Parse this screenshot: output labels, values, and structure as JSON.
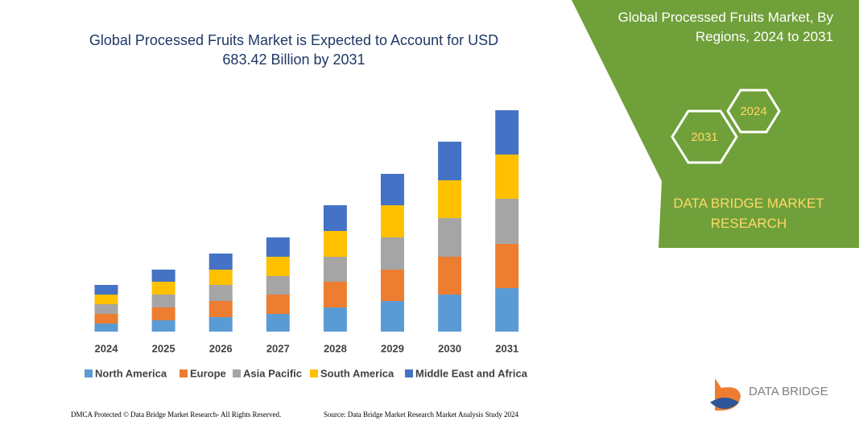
{
  "chart_data": {
    "type": "bar",
    "stacked": true,
    "title": "Global Processed Fruits Market is Expected to Account for USD 683.42 Billion by 2031",
    "categories": [
      "2024",
      "2025",
      "2026",
      "2027",
      "2028",
      "2029",
      "2030",
      "2031"
    ],
    "series": [
      {
        "name": "North America",
        "color": "#5b9bd5",
        "values": [
          10,
          14,
          18,
          22,
          30,
          38,
          46,
          54
        ]
      },
      {
        "name": "Europe",
        "color": "#ed7d31",
        "values": [
          12,
          16,
          20,
          24,
          32,
          39,
          47,
          55
        ]
      },
      {
        "name": "Asia Pacific",
        "color": "#a5a5a5",
        "values": [
          12,
          16,
          20,
          23,
          31,
          40,
          48,
          56
        ]
      },
      {
        "name": "South America",
        "color": "#ffc000",
        "values": [
          12,
          16,
          19,
          24,
          32,
          40,
          47,
          55
        ]
      },
      {
        "name": "Middle East and Africa",
        "color": "#4472c4",
        "values": [
          12,
          15,
          20,
          24,
          32,
          39,
          48,
          55
        ]
      }
    ]
  },
  "side_panel": {
    "title": "Global Processed Fruits Market, By Regions, 2024 to 2031",
    "hexagons": [
      "2024",
      "2031"
    ],
    "brand": "DATA BRIDGE MARKET RESEARCH"
  },
  "logo": {
    "text": "DATA BRIDGE"
  },
  "footer": {
    "left": "DMCA Protected © Data Bridge Market Research- All Rights Reserved.",
    "right": "Source: Data Bridge Market Research Market Analysis Study 2024"
  }
}
